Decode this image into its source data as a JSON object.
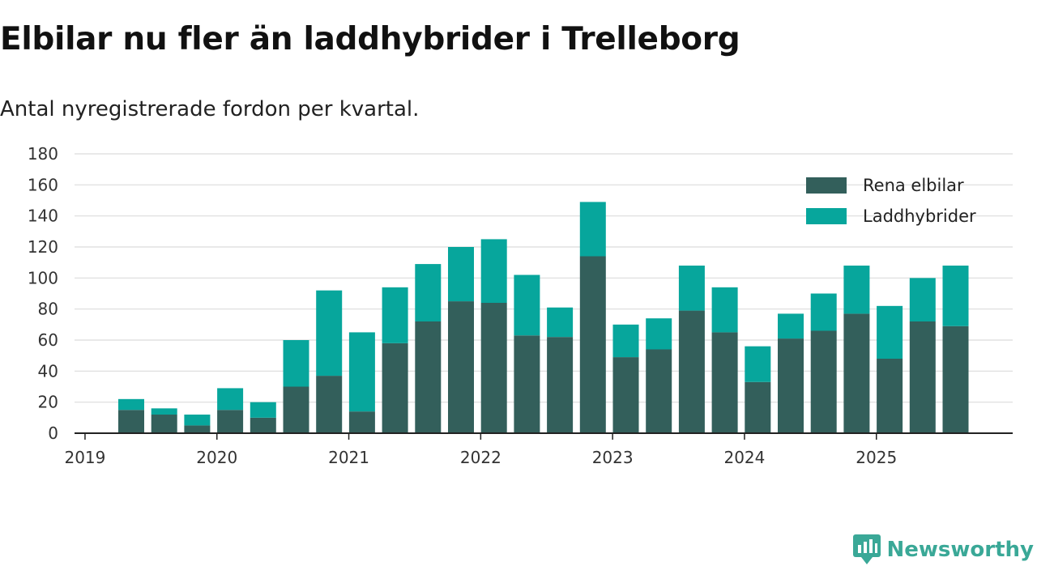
{
  "header": {
    "title": "Elbilar nu fler än laddhybrider i Trelleborg",
    "subtitle": "Antal nyregistrerade fordon per kvartal."
  },
  "brand": {
    "name": "Newsworthy",
    "color": "#3aa897"
  },
  "chart_data": {
    "type": "bar",
    "stacked": true,
    "x": [
      "2019Q2",
      "2019Q3",
      "2019Q4",
      "2020Q1",
      "2020Q2",
      "2020Q3",
      "2020Q4",
      "2021Q1",
      "2021Q2",
      "2021Q3",
      "2021Q4",
      "2022Q1",
      "2022Q2",
      "2022Q3",
      "2022Q4",
      "2023Q1",
      "2023Q2",
      "2023Q3",
      "2023Q4",
      "2024Q1",
      "2024Q2",
      "2024Q3",
      "2024Q4",
      "2025Q1",
      "2025Q2",
      "2025Q3"
    ],
    "series": [
      {
        "name": "Rena elbilar",
        "color": "#335f5b",
        "values": [
          15,
          12,
          5,
          15,
          10,
          30,
          37,
          14,
          58,
          72,
          85,
          84,
          63,
          62,
          114,
          49,
          54,
          79,
          65,
          33,
          61,
          66,
          77,
          48,
          72,
          69
        ]
      },
      {
        "name": "Laddhybrider",
        "color": "#07a69c",
        "values": [
          7,
          4,
          7,
          14,
          10,
          30,
          55,
          51,
          36,
          37,
          35,
          41,
          39,
          19,
          35,
          21,
          20,
          29,
          29,
          23,
          16,
          24,
          31,
          34,
          28,
          39
        ]
      }
    ],
    "x_tick_labels": [
      "2019",
      "2020",
      "2021",
      "2022",
      "2023",
      "2024",
      "2025"
    ],
    "y_ticks": [
      0,
      20,
      40,
      60,
      80,
      100,
      120,
      140,
      160,
      180
    ],
    "ylim": [
      0,
      180
    ],
    "xlabel": "",
    "ylabel": "",
    "grid": true,
    "legend_position": "top-right"
  }
}
